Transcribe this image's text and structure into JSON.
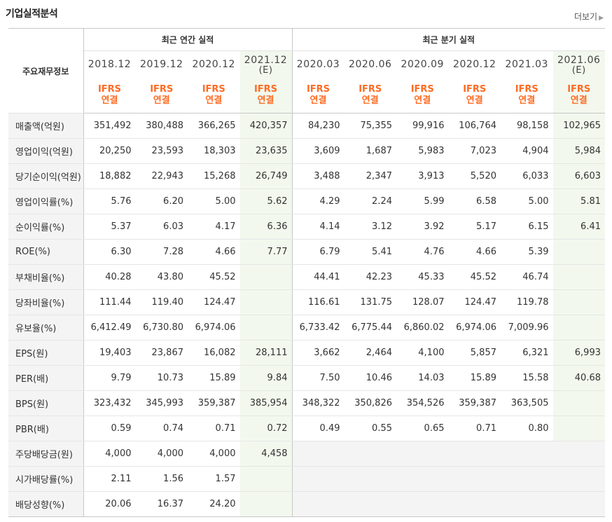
{
  "title": "기업실적분석",
  "more_label": "더보기",
  "row_header_label": "주요재무정보",
  "groups": {
    "annual": "최근 연간 실적",
    "quarterly": "최근 분기 실적"
  },
  "periods": [
    {
      "label": "2018.12",
      "est": ""
    },
    {
      "label": "2019.12",
      "est": ""
    },
    {
      "label": "2020.12",
      "est": ""
    },
    {
      "label": "2021.12",
      "est": "(E)"
    },
    {
      "label": "2020.03",
      "est": ""
    },
    {
      "label": "2020.06",
      "est": ""
    },
    {
      "label": "2020.09",
      "est": ""
    },
    {
      "label": "2020.12",
      "est": ""
    },
    {
      "label": "2021.03",
      "est": ""
    },
    {
      "label": "2021.06",
      "est": "(E)"
    }
  ],
  "ifrs_line1": "IFRS",
  "ifrs_line2": "연결",
  "rows": [
    {
      "label": "매출액(억원)",
      "values": [
        "351,492",
        "380,488",
        "366,265",
        "420,357",
        "84,230",
        "75,355",
        "99,916",
        "106,764",
        "98,158",
        "102,965"
      ]
    },
    {
      "label": "영업이익(억원)",
      "values": [
        "20,250",
        "23,593",
        "18,303",
        "23,635",
        "3,609",
        "1,687",
        "5,983",
        "7,023",
        "4,904",
        "5,984"
      ]
    },
    {
      "label": "당기순이익(억원)",
      "values": [
        "18,882",
        "22,943",
        "15,268",
        "26,749",
        "3,488",
        "2,347",
        "3,913",
        "5,520",
        "6,033",
        "6,603"
      ]
    },
    {
      "label": "영업이익률(%)",
      "values": [
        "5.76",
        "6.20",
        "5.00",
        "5.62",
        "4.29",
        "2.24",
        "5.99",
        "6.58",
        "5.00",
        "5.81"
      ]
    },
    {
      "label": "순이익률(%)",
      "values": [
        "5.37",
        "6.03",
        "4.17",
        "6.36",
        "4.14",
        "3.12",
        "3.92",
        "5.17",
        "6.15",
        "6.41"
      ]
    },
    {
      "label": "ROE(%)",
      "values": [
        "6.30",
        "7.28",
        "4.66",
        "7.77",
        "6.79",
        "5.41",
        "4.76",
        "4.66",
        "5.39",
        ""
      ]
    },
    {
      "label": "부채비율(%)",
      "values": [
        "40.28",
        "43.80",
        "45.52",
        "",
        "44.41",
        "42.23",
        "45.33",
        "45.52",
        "46.74",
        ""
      ]
    },
    {
      "label": "당좌비율(%)",
      "values": [
        "111.44",
        "119.40",
        "124.47",
        "",
        "116.61",
        "131.75",
        "128.07",
        "124.47",
        "119.78",
        ""
      ]
    },
    {
      "label": "유보율(%)",
      "values": [
        "6,412.49",
        "6,730.80",
        "6,974.06",
        "",
        "6,733.42",
        "6,775.44",
        "6,860.02",
        "6,974.06",
        "7,009.96",
        ""
      ]
    },
    {
      "label": "EPS(원)",
      "values": [
        "19,403",
        "23,867",
        "16,082",
        "28,111",
        "3,662",
        "2,464",
        "4,100",
        "5,857",
        "6,321",
        "6,993"
      ]
    },
    {
      "label": "PER(배)",
      "values": [
        "9.79",
        "10.73",
        "15.89",
        "9.84",
        "7.50",
        "10.46",
        "14.03",
        "15.89",
        "15.58",
        "40.68"
      ]
    },
    {
      "label": "BPS(원)",
      "values": [
        "323,432",
        "345,993",
        "359,387",
        "385,954",
        "348,322",
        "350,826",
        "354,526",
        "359,387",
        "363,505",
        ""
      ]
    },
    {
      "label": "PBR(배)",
      "values": [
        "0.59",
        "0.74",
        "0.71",
        "0.72",
        "0.49",
        "0.55",
        "0.65",
        "0.71",
        "0.80",
        ""
      ]
    },
    {
      "label": "주당배당금(원)",
      "values": [
        "4,000",
        "4,000",
        "4,000",
        "4,458",
        "",
        "",
        "",
        "",
        "",
        ""
      ]
    },
    {
      "label": "시가배당률(%)",
      "values": [
        "2.11",
        "1.56",
        "1.57",
        "",
        "",
        "",
        "",
        "",
        "",
        ""
      ]
    },
    {
      "label": "배당성향(%)",
      "values": [
        "20.06",
        "16.37",
        "24.20",
        "",
        "",
        "",
        "",
        "",
        "",
        ""
      ]
    }
  ]
}
